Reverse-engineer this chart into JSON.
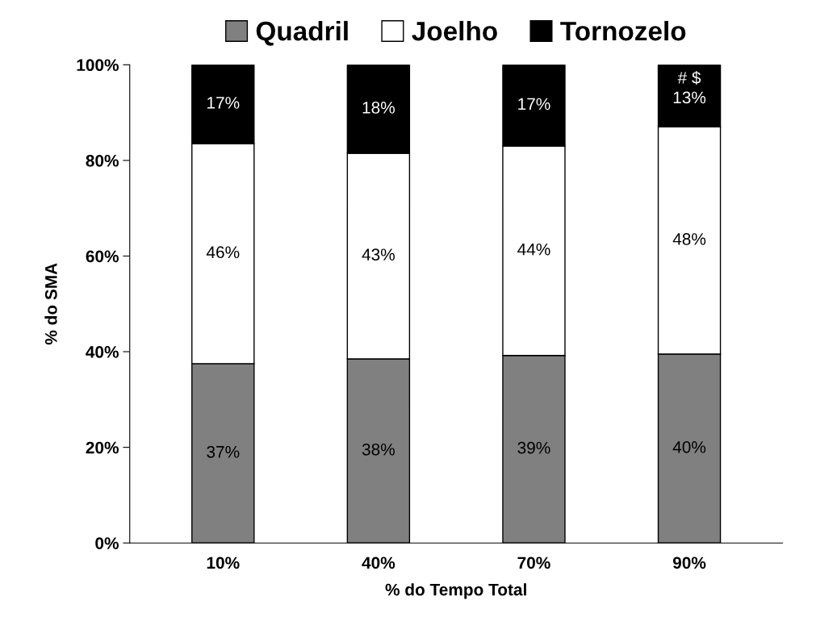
{
  "chart_data": {
    "type": "bar",
    "stacked": true,
    "xlabel": "% do Tempo Total",
    "ylabel": "% do SMA",
    "categories": [
      "10%",
      "40%",
      "70%",
      "90%"
    ],
    "series": [
      {
        "name": "Quadril",
        "color": "#808080",
        "values": [
          37.5,
          38.5,
          39.2,
          39.5
        ],
        "value_labels": [
          "37%",
          "38%",
          "39%",
          "40%"
        ]
      },
      {
        "name": "Joelho",
        "color": "#ffffff",
        "values": [
          46,
          43,
          43.8,
          47.5
        ],
        "value_labels": [
          "46%",
          "43%",
          "44%",
          "48%"
        ]
      },
      {
        "name": "Tornozelo",
        "color": "#000000",
        "values": [
          16.5,
          18.5,
          17,
          13
        ],
        "value_labels": [
          "17%",
          "18%",
          "17%",
          "13%"
        ]
      }
    ],
    "ylim": [
      0,
      100
    ],
    "yticks": [
      {
        "value": 0,
        "label": "0%"
      },
      {
        "value": 20,
        "label": "20%"
      },
      {
        "value": 40,
        "label": "40%"
      },
      {
        "value": 60,
        "label": "60%"
      },
      {
        "value": 80,
        "label": "80%"
      },
      {
        "value": 100,
        "label": "100%"
      }
    ],
    "annotations": [
      "# $"
    ],
    "legend": "top",
    "grid": false
  }
}
